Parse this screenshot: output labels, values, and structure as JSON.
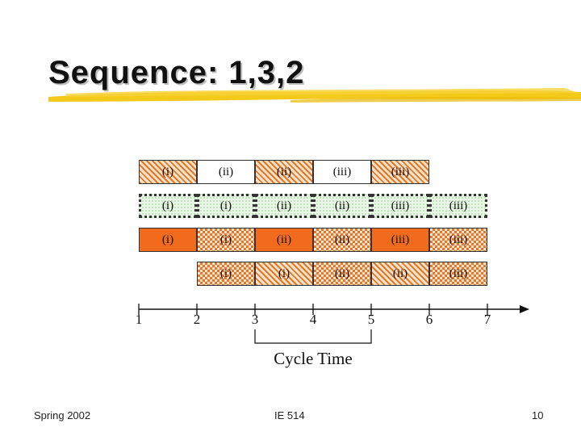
{
  "slide": {
    "title": "Sequence: 1,3,2"
  },
  "schedule": {
    "rows": [
      {
        "cells": [
          {
            "label": "(i)",
            "texture": "hatch"
          },
          {
            "label": "(ii)",
            "texture": "white"
          },
          {
            "label": "(ii)",
            "texture": "hatch"
          },
          {
            "label": "(iii)",
            "texture": "white"
          },
          {
            "label": "(iii)",
            "texture": "hatch"
          }
        ]
      },
      {
        "cells": [
          {
            "label": "(i)",
            "texture": "light"
          },
          {
            "label": "(i)",
            "texture": "light"
          },
          {
            "label": "(ii)",
            "texture": "light"
          },
          {
            "label": "(ii)",
            "texture": "light"
          },
          {
            "label": "(iii)",
            "texture": "light"
          },
          {
            "label": "(iii)",
            "texture": "light"
          }
        ]
      },
      {
        "cells": [
          {
            "label": "(i)",
            "texture": "solid"
          },
          {
            "label": "(i)",
            "texture": "check"
          },
          {
            "label": "(ii)",
            "texture": "solid"
          },
          {
            "label": "(ii)",
            "texture": "check"
          },
          {
            "label": "(iii)",
            "texture": "solid"
          },
          {
            "label": "(iii)",
            "texture": "check"
          }
        ]
      },
      {
        "cells": [
          {
            "label": "(i)",
            "texture": "check"
          },
          {
            "label": "(i)",
            "texture": "hatch"
          },
          {
            "label": "(ii)",
            "texture": "check"
          },
          {
            "label": "(ii)",
            "texture": "hatch"
          },
          {
            "label": "(iii)",
            "texture": "check"
          }
        ]
      }
    ],
    "axis_ticks": [
      "1",
      "2",
      "3",
      "4",
      "5",
      "6",
      "7"
    ],
    "cycle_label": "Cycle Time"
  },
  "footer": {
    "left": "Spring 2002",
    "center": "IE 514",
    "page": "10"
  },
  "colors": {
    "orange_solid": "#f26a1b",
    "orange_pattern": "#e07a2a",
    "light_green": "#e9f7e6",
    "title_underline": "#f2c400"
  }
}
